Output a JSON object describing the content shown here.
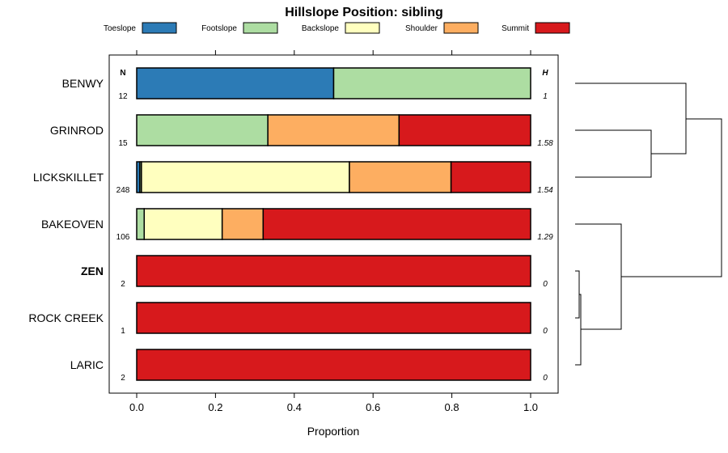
{
  "chart_data": {
    "type": "bar",
    "orientation": "horizontal",
    "stacked": true,
    "title": "Hillslope Position: sibling",
    "xlabel": "Proportion",
    "ylabel": "",
    "xlim": [
      0,
      1
    ],
    "xticks": [
      "0.0",
      "0.2",
      "0.4",
      "0.6",
      "0.8",
      "1.0"
    ],
    "n_header": "N",
    "h_header": "H",
    "legend": [
      {
        "name": "Toeslope",
        "color": "#2c7bb6"
      },
      {
        "name": "Footslope",
        "color": "#addda2"
      },
      {
        "name": "Backslope",
        "color": "#ffffbf"
      },
      {
        "name": "Shoulder",
        "color": "#fdae61"
      },
      {
        "name": "Summit",
        "color": "#d7191c"
      }
    ],
    "categories": [
      "BENWY",
      "GRINROD",
      "LICKSKILLET",
      "BAKEOVEN",
      "ZEN",
      "ROCK CREEK",
      "LARIC"
    ],
    "highlight": "ZEN",
    "n": [
      "12",
      "15",
      "248",
      "106",
      "2",
      "1",
      "2"
    ],
    "h": [
      "1",
      "1.58",
      "1.54",
      "1.29",
      "0",
      "0",
      "0"
    ],
    "series": [
      {
        "name": "Toeslope",
        "values": [
          0.5,
          0,
          0.008,
          0,
          0,
          0,
          0
        ]
      },
      {
        "name": "Footslope",
        "values": [
          0.5,
          0.333,
          0.004,
          0.019,
          0,
          0,
          0
        ]
      },
      {
        "name": "Backslope",
        "values": [
          0,
          0,
          0.528,
          0.198,
          0,
          0,
          0
        ]
      },
      {
        "name": "Shoulder",
        "values": [
          0,
          0.333,
          0.258,
          0.104,
          0,
          0,
          0
        ]
      },
      {
        "name": "Summit",
        "values": [
          0,
          0.334,
          0.202,
          0.679,
          1,
          1,
          1
        ]
      }
    ],
    "dendrogram": "clustering of soil series by hillslope-position proportions: (BENWY, (GRINROD, LICKSKILLET)), (BAKEOVEN, ((ZEN, ROCK CREEK), LARIC))"
  }
}
